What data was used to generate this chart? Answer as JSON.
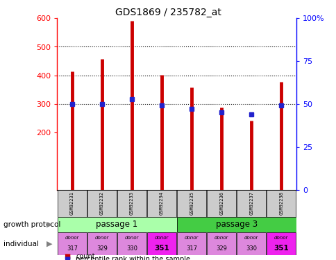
{
  "title": "GDS1869 / 235782_at",
  "samples": [
    "GSM92231",
    "GSM92232",
    "GSM92233",
    "GSM92234",
    "GSM92235",
    "GSM92236",
    "GSM92237",
    "GSM92238"
  ],
  "counts": [
    413,
    458,
    590,
    402,
    358,
    289,
    242,
    378
  ],
  "percentiles": [
    50,
    50,
    53,
    49,
    47,
    45,
    44,
    49
  ],
  "ylim_left": [
    0,
    600
  ],
  "ylim_right": [
    0,
    100
  ],
  "yticks_left": [
    200,
    300,
    400,
    500,
    600
  ],
  "yticks_right": [
    0,
    25,
    50,
    75,
    100
  ],
  "ytick_labels_right": [
    "0",
    "25",
    "50",
    "75",
    "100%"
  ],
  "bar_color": "#cc0000",
  "dot_color": "#2222cc",
  "passage1_color": "#aaffaa",
  "passage3_color": "#44cc44",
  "donor_colors_pattern": [
    "#dd88dd",
    "#dd88dd",
    "#dd88dd",
    "#ee22ee"
  ],
  "donors": [
    "317",
    "329",
    "330",
    "351"
  ],
  "growth_protocol_label": "growth protocol",
  "individual_label": "individual",
  "legend_count": "count",
  "legend_percentile": "percentile rank within the sample",
  "sample_box_color": "#cccccc",
  "passage1_label": "passage 1",
  "passage3_label": "passage 3",
  "grid_lines": [
    300,
    400,
    500
  ],
  "bar_bottom": 0
}
